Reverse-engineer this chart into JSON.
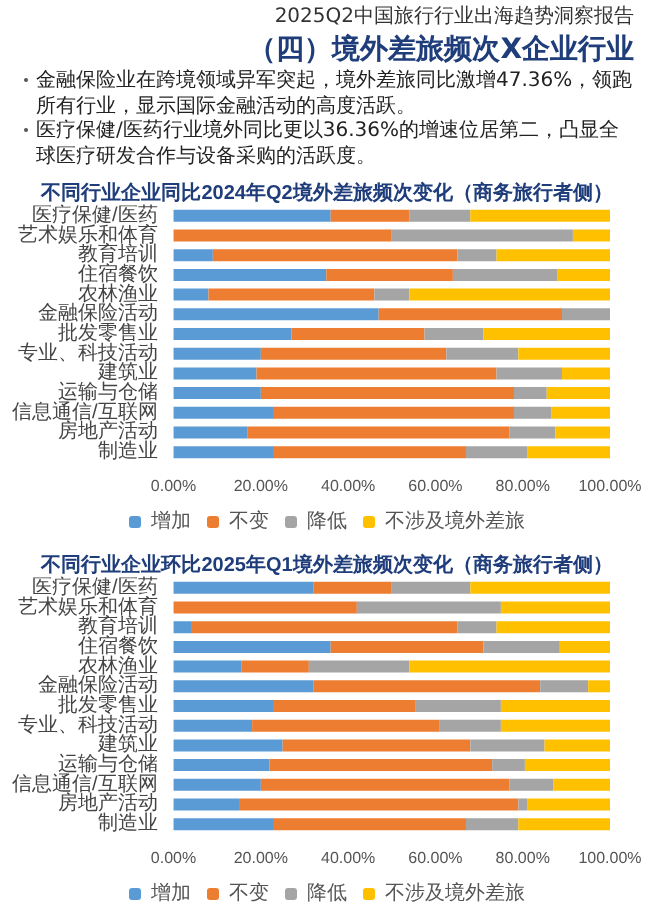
{
  "chart_data": [
    {
      "type": "bar",
      "orientation": "horizontal",
      "stacked": true,
      "title": "不同行业企业同比2024年Q2境外差旅频次变化（商务旅行者侧）",
      "annotations": [
        "2025Q2中国旅行行业出海趋势洞察报告",
        "（四）境外差旅频次X企业行业",
        "金融保险业在跨境领域异军突起，境外差旅同比激增47.36%，领跑所有行业，显示国际金融活动的高度活跃。",
        "医疗保健/医药行业境外同比更以36.36%的增速位居第二，凸显全球医疗研发合作与设备采购的活跃度。"
      ],
      "categories": [
        "医疗保健/医药",
        "艺术娱乐和体育",
        "教育培训",
        "住宿餐饮",
        "农林渔业",
        "金融保险活动",
        "批发零售业",
        "专业、科技活动",
        "建筑业",
        "运输与仓储",
        "信息通信/互联网",
        "房地产活动",
        "制造业"
      ],
      "series": [
        {
          "name": "增加",
          "color": "#5b9bd5",
          "values": [
            36,
            0,
            9,
            35,
            8,
            47,
            27,
            20,
            19,
            20,
            23,
            17,
            23
          ]
        },
        {
          "name": "不变",
          "color": "#ed7d31",
          "values": [
            18,
            50,
            56,
            29,
            38,
            42,
            30.5,
            42.5,
            55,
            58,
            55,
            60,
            44
          ]
        },
        {
          "name": "降低",
          "color": "#a5a5a5",
          "values": [
            14,
            41.5,
            9,
            24,
            8,
            11,
            13.5,
            16.5,
            15,
            7.5,
            8.5,
            10.5,
            14
          ]
        },
        {
          "name": "不涉及境外差旅",
          "color": "#ffc000",
          "values": [
            32,
            8.5,
            26,
            12,
            46,
            0,
            29,
            21,
            11,
            14.5,
            13.5,
            12.5,
            19
          ]
        }
      ],
      "xlim": [
        0,
        100
      ],
      "xticks": [
        {
          "value": 0,
          "label": "0.00%"
        },
        {
          "value": 20,
          "label": "20.00%"
        },
        {
          "value": 40,
          "label": "40.00%"
        },
        {
          "value": 60,
          "label": "60.00%"
        },
        {
          "value": 80,
          "label": "80.00%"
        },
        {
          "value": 100,
          "label": "100.00%"
        }
      ],
      "legend": "bottom"
    },
    {
      "type": "bar",
      "orientation": "horizontal",
      "stacked": true,
      "title": "不同行业企业环比2025年Q1境外差旅频次变化（商务旅行者侧）",
      "categories": [
        "医疗保健/医药",
        "艺术娱乐和体育",
        "教育培训",
        "住宿餐饮",
        "农林渔业",
        "金融保险活动",
        "批发零售业",
        "专业、科技活动",
        "建筑业",
        "运输与仓储",
        "信息通信/互联网",
        "房地产活动",
        "制造业"
      ],
      "series": [
        {
          "name": "增加",
          "color": "#5b9bd5",
          "values": [
            32,
            0,
            4,
            36,
            15.5,
            32,
            23,
            18,
            25,
            22,
            20,
            15,
            23
          ]
        },
        {
          "name": "不变",
          "color": "#ed7d31",
          "values": [
            18,
            42,
            61,
            35,
            15.5,
            52,
            32.5,
            43,
            43,
            51,
            57,
            64,
            44
          ]
        },
        {
          "name": "降低",
          "color": "#a5a5a5",
          "values": [
            18,
            33,
            9,
            17.5,
            23,
            11,
            19.5,
            14,
            17,
            7.5,
            10,
            2,
            12
          ]
        },
        {
          "name": "不涉及境外差旅",
          "color": "#ffc000",
          "values": [
            32,
            25,
            26,
            11.5,
            46,
            5,
            25,
            25,
            15,
            19.5,
            13,
            19,
            21
          ]
        }
      ],
      "xlim": [
        0,
        100
      ],
      "xticks": [
        {
          "value": 0,
          "label": "0.00%"
        },
        {
          "value": 20,
          "label": "20.00%"
        },
        {
          "value": 40,
          "label": "40.00%"
        },
        {
          "value": 60,
          "label": "60.00%"
        },
        {
          "value": 80,
          "label": "80.00%"
        },
        {
          "value": 100,
          "label": "100.00%"
        }
      ],
      "legend": "bottom"
    }
  ]
}
